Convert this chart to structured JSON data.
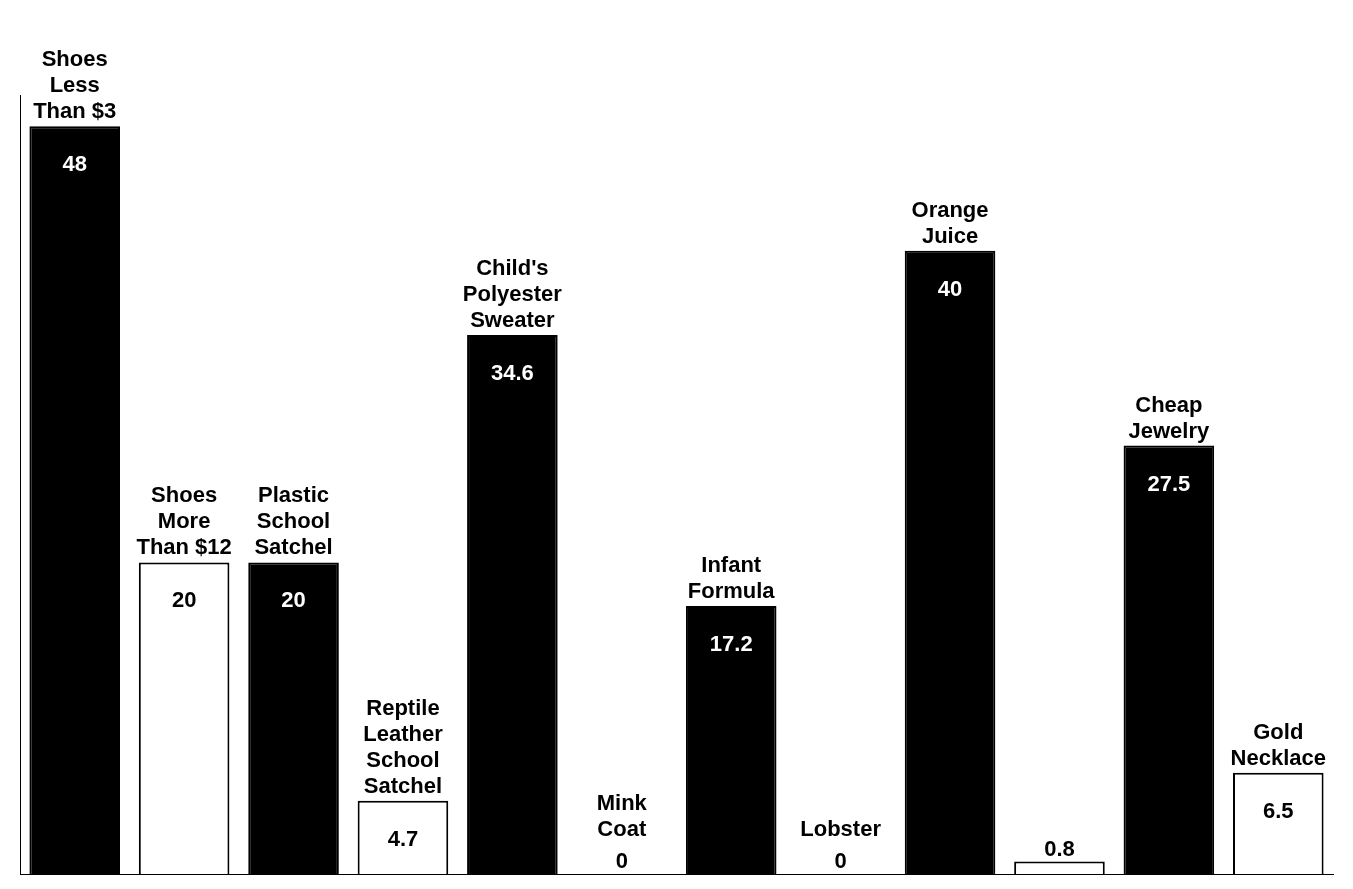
{
  "chart_data": {
    "type": "bar",
    "categories": [
      "Shoes Less Than $3",
      "Shoes More Than $12",
      "Plastic School Satchel",
      "Reptile Leather School Satchel",
      "Child's Polyester Sweater",
      "Mink Coat",
      "Infant Formula",
      "Lobster",
      "Orange Juice",
      null,
      "Cheap Jewelry",
      "Gold Necklace"
    ],
    "values": [
      48,
      20,
      20,
      4.7,
      34.6,
      0,
      17.2,
      0,
      40,
      0.8,
      27.5,
      6.5
    ],
    "colors": [
      "#000000",
      "#ffffff",
      "#000000",
      "#ffffff",
      "#000000",
      "#ffffff",
      "#000000",
      "#ffffff",
      "#000000",
      "#ffffff",
      "#000000",
      "#ffffff"
    ],
    "data_labels": true,
    "tick_labels": false,
    "grid": false,
    "legend": false
  }
}
